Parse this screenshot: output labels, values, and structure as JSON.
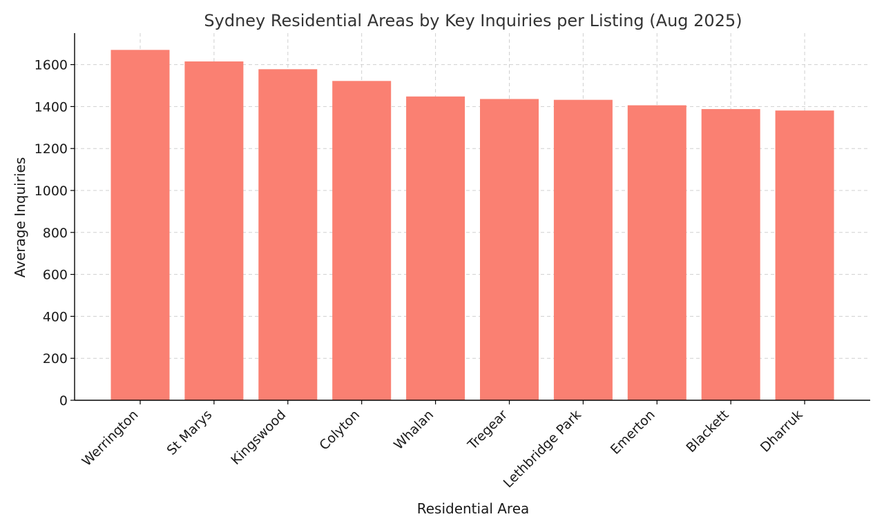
{
  "chart_data": {
    "type": "bar",
    "title": "Sydney Residential Areas by Key Inquiries per Listing (Aug 2025)",
    "xlabel": "Residential Area",
    "ylabel": "Average Inquiries",
    "categories": [
      "Werrington",
      "St Marys",
      "Kingswood",
      "Colyton",
      "Whalan",
      "Tregear",
      "Lethbridge Park",
      "Emerton",
      "Blackett",
      "Dharruk"
    ],
    "values": [
      1670,
      1615,
      1578,
      1522,
      1448,
      1436,
      1432,
      1406,
      1388,
      1381
    ],
    "ylim": [
      0,
      1750
    ],
    "yticks": [
      0,
      200,
      400,
      600,
      800,
      1000,
      1200,
      1400,
      1600
    ],
    "grid": true,
    "bar_color": "#fa8072"
  }
}
